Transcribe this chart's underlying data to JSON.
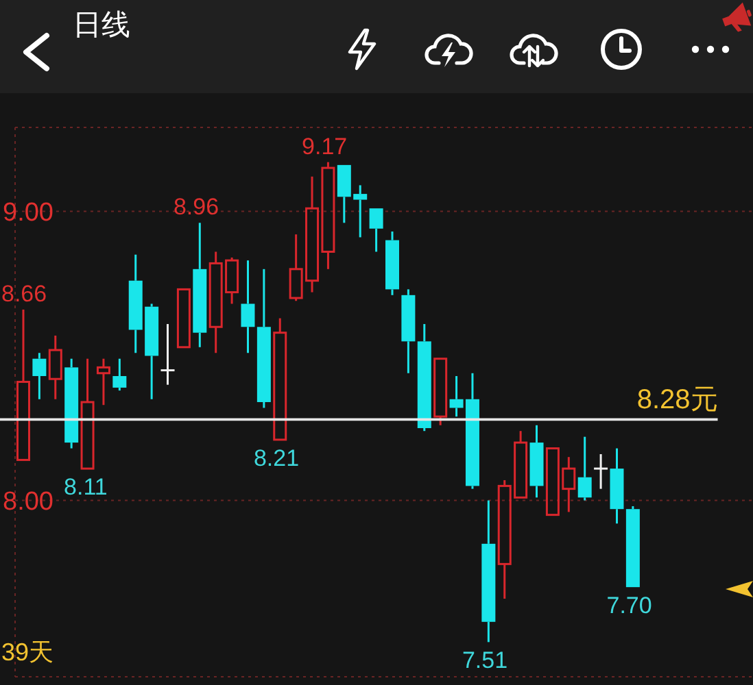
{
  "chart_data": {
    "type": "candlestick",
    "title": "日线",
    "categories": [
      null,
      null,
      null,
      null,
      null,
      null,
      null,
      null,
      null,
      null,
      null,
      null,
      null,
      null,
      null,
      null,
      null,
      null,
      null,
      null,
      null,
      null,
      null,
      null,
      null,
      null,
      null,
      null,
      null,
      null,
      null,
      null,
      null,
      null,
      null,
      null,
      null,
      null,
      null,
      null,
      null,
      null,
      null,
      null,
      null,
      null
    ],
    "ohlc": [
      [
        8.14,
        8.66,
        8.14,
        8.41
      ],
      [
        8.49,
        8.51,
        8.35,
        8.43
      ],
      [
        8.42,
        8.57,
        8.35,
        8.52
      ],
      [
        8.46,
        8.49,
        8.18,
        8.2
      ],
      [
        8.11,
        8.49,
        8.11,
        8.34
      ],
      [
        8.44,
        8.49,
        8.33,
        8.46
      ],
      [
        8.43,
        8.49,
        8.38,
        8.39
      ],
      [
        8.76,
        8.85,
        8.51,
        8.59
      ],
      [
        8.67,
        8.68,
        8.35,
        8.5
      ],
      [
        8.45,
        8.61,
        8.4,
        8.45
      ],
      [
        8.53,
        8.73,
        8.53,
        8.73
      ],
      [
        8.8,
        8.96,
        8.53,
        8.58
      ],
      [
        8.6,
        8.86,
        8.51,
        8.82
      ],
      [
        8.72,
        8.84,
        8.68,
        8.83
      ],
      [
        8.68,
        8.83,
        8.51,
        8.6
      ],
      [
        8.6,
        8.8,
        8.32,
        8.34
      ],
      [
        8.21,
        8.63,
        8.21,
        8.58
      ],
      [
        8.7,
        8.92,
        8.69,
        8.8
      ],
      [
        8.76,
        9.12,
        8.72,
        9.01
      ],
      [
        8.86,
        9.17,
        8.8,
        9.15
      ],
      [
        9.16,
        9.16,
        8.96,
        9.05
      ],
      [
        9.06,
        9.09,
        8.91,
        9.04
      ],
      [
        9.01,
        9.01,
        8.86,
        8.94
      ],
      [
        8.9,
        8.93,
        8.71,
        8.73
      ],
      [
        8.71,
        8.73,
        8.44,
        8.55
      ],
      [
        8.55,
        8.61,
        8.24,
        8.25
      ],
      [
        8.29,
        8.49,
        8.26,
        8.49
      ],
      [
        8.35,
        8.43,
        8.29,
        8.32
      ],
      [
        8.35,
        8.44,
        8.04,
        8.05
      ],
      [
        7.85,
        8.0,
        7.51,
        7.58
      ],
      [
        7.78,
        8.07,
        7.66,
        8.05
      ],
      [
        8.01,
        8.24,
        8.01,
        8.2
      ],
      [
        8.2,
        8.26,
        8.01,
        8.05
      ],
      [
        7.95,
        8.18,
        7.95,
        8.18
      ],
      [
        8.04,
        8.15,
        7.96,
        8.11
      ],
      [
        8.08,
        8.22,
        8.0,
        8.01
      ],
      [
        8.11,
        8.16,
        8.04,
        8.11
      ],
      [
        8.11,
        8.18,
        7.92,
        7.97
      ],
      [
        7.97,
        7.98,
        7.7,
        7.7
      ],
      null,
      null,
      null,
      null,
      null,
      null,
      null
    ],
    "colors": [
      "#d9262c",
      "#1ae5ea",
      "#d9262c",
      "#1ae5ea",
      "#d9262c",
      "#d9262c",
      "#1ae5ea",
      "#1ae5ea",
      "#1ae5ea",
      "#f0f0f0",
      "#d9262c",
      "#1ae5ea",
      "#d9262c",
      "#d9262c",
      "#1ae5ea",
      "#1ae5ea",
      "#d9262c",
      "#d9262c",
      "#d9262c",
      "#d9262c",
      "#1ae5ea",
      "#1ae5ea",
      "#1ae5ea",
      "#1ae5ea",
      "#1ae5ea",
      "#1ae5ea",
      "#d9262c",
      "#1ae5ea",
      "#1ae5ea",
      "#1ae5ea",
      "#d9262c",
      "#d9262c",
      "#1ae5ea",
      "#d9262c",
      "#d9262c",
      "#1ae5ea",
      "#f0f0f0",
      "#1ae5ea",
      "#1ae5ea",
      null,
      null,
      null,
      null,
      null,
      null,
      null
    ],
    "ylim": [
      7.39,
      9.29
    ],
    "yticks": [
      {
        "value": 9,
        "label": "9.00"
      },
      {
        "value": 8,
        "label": "8.00"
      }
    ],
    "grid": "y",
    "ref_lines": [
      {
        "axis": "y",
        "value": 8.28,
        "label": "8.28元",
        "color": "#e6e6e6"
      }
    ],
    "annotations": [
      {
        "text": "9.17",
        "y": 9.17
      },
      {
        "text": "8.96",
        "y": 8.96
      },
      {
        "text": "8.66",
        "y": 8.66
      },
      {
        "text": "8.21",
        "y": 8.21
      },
      {
        "text": "8.11",
        "y": 8.11
      },
      {
        "text": "7.51",
        "y": 7.51
      },
      {
        "text": "7.70",
        "y": 7.7
      },
      "39天"
    ]
  }
}
